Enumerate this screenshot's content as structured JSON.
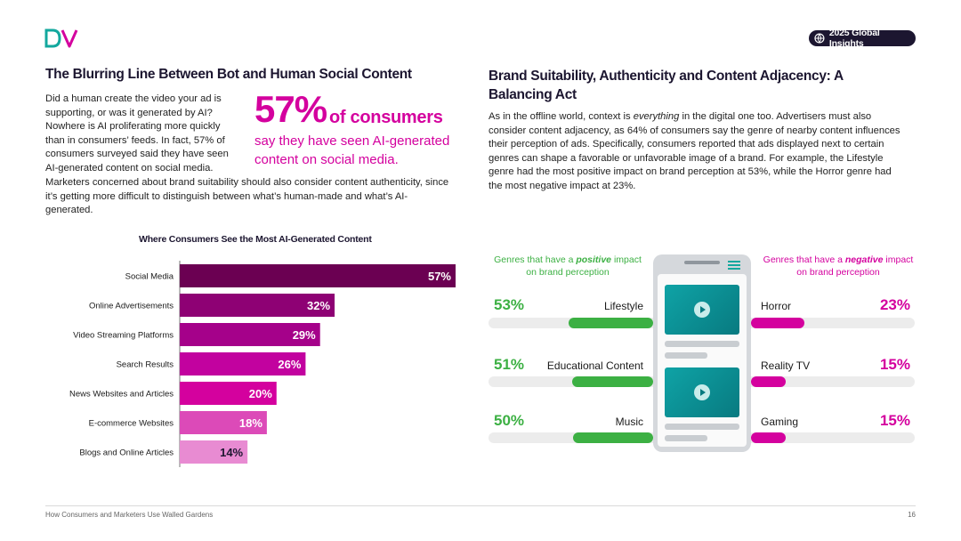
{
  "colors": {
    "magenta": "#d4019e",
    "green": "#3cb043",
    "navy": "#1c1630"
  },
  "header": {
    "badge_label": "2025 Global Insights",
    "badge_icon": "globe-icon",
    "logo_icon": "dv-logo-icon"
  },
  "left": {
    "heading": "The Blurring Line Between Bot and Human Social Content",
    "para1": "Did a human create the video your ad is supporting, or was it generated by AI? Nowhere is AI proliferating more quickly than in consumers’ feeds. In fact, 57% of consumers surveyed said they have seen AI-generated content on social media.",
    "para2": "Marketers concerned about brand suitability should also consider content authenticity, since it’s getting more difficult to distinguish between what’s human-made and what’s AI-generated.",
    "stat_value": "57%",
    "stat_suffix": "of consumers",
    "stat_desc": "say they have seen AI-generated content on social media."
  },
  "right": {
    "heading": "Brand Suitability, Authenticity and Content Adjacency: A Balancing Act",
    "para_pre": "As in the offline world, context is ",
    "para_em": "everything",
    "para_post": " in the digital one too. Advertisers must also consider content adjacency, as 64% of consumers say the genre of nearby content influences their perception of ads. Specifically, consumers reported that ads displayed next to certain genres can shape a favorable or unfavorable image of a brand. For example, the Lifestyle genre had the most positive impact on brand perception at 53%, while the Horror genre had the most negative impact at 23%."
  },
  "chart_data": {
    "type": "bar",
    "orientation": "horizontal",
    "title": "Where Consumers See the Most AI-Generated Content",
    "categories": [
      "Social Media",
      "Online Advertisements",
      "Video Streaming Platforms",
      "Search Results",
      "News Websites and Articles",
      "E-commerce Websites",
      "Blogs and Online Articles"
    ],
    "values": [
      57,
      32,
      29,
      26,
      20,
      18,
      14
    ],
    "labels": [
      "57%",
      "32%",
      "29%",
      "26%",
      "20%",
      "18%",
      "14%"
    ],
    "colors": [
      "#6b0052",
      "#8e0174",
      "#a5018a",
      "#c2029f",
      "#d4019e",
      "#dc4ab8",
      "#e88bd2"
    ],
    "label_colors": [
      "#ffffff",
      "#ffffff",
      "#ffffff",
      "#ffffff",
      "#ffffff",
      "#ffffff",
      "#1c1630"
    ],
    "xlim": [
      0,
      57
    ]
  },
  "genres": {
    "positive_header_pre": "Genres that have a ",
    "positive_header_em": "positive",
    "positive_header_post": " impact on brand perception",
    "negative_header_pre": "Genres that have a ",
    "negative_header_em": "negative",
    "negative_header_post": " impact on brand perception",
    "positive": [
      {
        "name": "Lifestyle",
        "pct": "53%",
        "value": 53
      },
      {
        "name": "Educational Content",
        "pct": "51%",
        "value": 51
      },
      {
        "name": "Music",
        "pct": "50%",
        "value": 50
      }
    ],
    "negative": [
      {
        "name": "Horror",
        "pct": "23%",
        "value": 23
      },
      {
        "name": "Reality TV",
        "pct": "15%",
        "value": 15
      },
      {
        "name": "Gaming",
        "pct": "15%",
        "value": 15
      }
    ]
  },
  "footer": {
    "title": "How Consumers and Marketers Use Walled Gardens",
    "page": "16"
  }
}
